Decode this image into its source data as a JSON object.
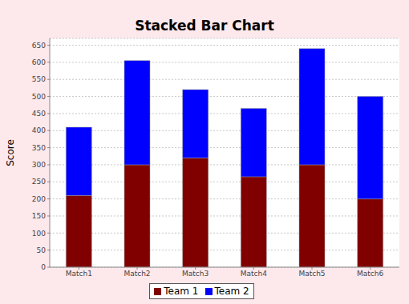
{
  "chart_data": {
    "type": "bar",
    "title": "Stacked Bar Chart",
    "y_label": "Score",
    "categories": [
      "Match1",
      "Match2",
      "Match3",
      "Match4",
      "Match5",
      "Match6"
    ],
    "series": [
      {
        "name": "Team 1",
        "color": "#800000",
        "values": [
          210,
          300,
          320,
          265,
          300,
          200
        ]
      },
      {
        "name": "Team 2",
        "color": "#0000ff",
        "values": [
          200,
          305,
          200,
          200,
          340,
          300
        ]
      }
    ],
    "stacked": true,
    "ylim": [
      0,
      670
    ],
    "yticks": [
      0,
      50,
      100,
      150,
      200,
      250,
      300,
      350,
      400,
      450,
      500,
      550,
      600,
      650
    ],
    "grid": true,
    "legend": "bottom"
  }
}
